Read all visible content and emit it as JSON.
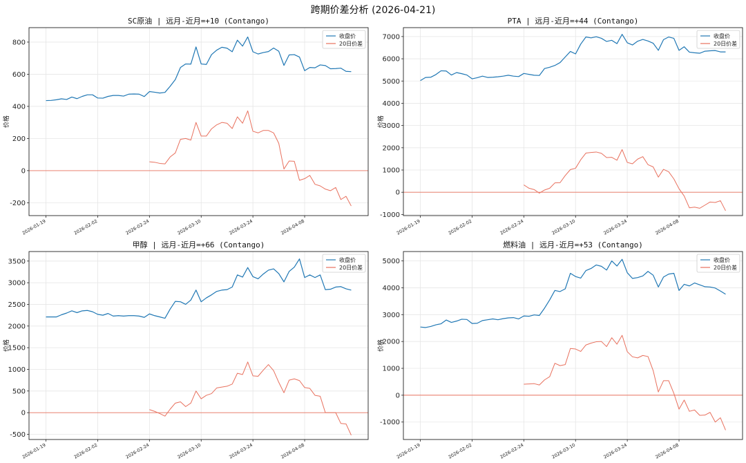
{
  "title": "跨期价差分析 (2026-04-21)",
  "colors": {
    "close": "#1f77b4",
    "spread": "#e8705d",
    "zero": "#e8705d"
  },
  "chart_data": [
    {
      "type": "line",
      "title": "SC原油 | 远月-近月=+10 (Contango)",
      "ylabel": "价格",
      "ylim": [
        -280,
        890
      ],
      "yticks": [
        -200,
        0,
        200,
        400,
        600,
        800
      ],
      "xtick_labels": [
        "2026-01-19",
        "2026-02-02",
        "2026-02-24",
        "2026-03-10",
        "2026-03-24",
        "2026-04-08"
      ],
      "xtick_positions": [
        0,
        10,
        20,
        30,
        40,
        50
      ],
      "n_points": 60,
      "legend": [
        "收盘价",
        "20日价差"
      ],
      "series": [
        {
          "name": "收盘价",
          "start": 0,
          "values": [
            436,
            437,
            441,
            447,
            443,
            458,
            448,
            462,
            472,
            472,
            452,
            451,
            462,
            468,
            468,
            464,
            476,
            477,
            476,
            461,
            492,
            488,
            483,
            487,
            525,
            567,
            642,
            664,
            663,
            770,
            664,
            661,
            722,
            750,
            768,
            762,
            740,
            812,
            775,
            832,
            740,
            726,
            735,
            741,
            763,
            743,
            655,
            720,
            722,
            707,
            622,
            642,
            640,
            658,
            654,
            634,
            635,
            638,
            618,
            616
          ]
        },
        {
          "name": "20日价差",
          "start": 20,
          "values": [
            55,
            52,
            45,
            42,
            85,
            110,
            195,
            200,
            190,
            300,
            215,
            215,
            260,
            285,
            300,
            295,
            262,
            335,
            295,
            372,
            245,
            235,
            250,
            250,
            235,
            170,
            10,
            60,
            58,
            -60,
            -50,
            -30,
            -85,
            -95,
            -115,
            -125,
            -105,
            -180,
            -160,
            -220
          ]
        }
      ]
    },
    {
      "type": "line",
      "title": "PTA | 远月-近月=+44 (Contango)",
      "ylabel": "价格",
      "ylim": [
        -1050,
        7400
      ],
      "yticks": [
        -1000,
        0,
        1000,
        2000,
        3000,
        4000,
        5000,
        6000,
        7000
      ],
      "xtick_labels": [
        "2026-01-19",
        "2026-02-02",
        "2026-02-24",
        "2026-03-10",
        "2026-03-24",
        "2026-04-08"
      ],
      "xtick_positions": [
        0,
        10,
        20,
        30,
        40,
        50
      ],
      "n_points": 60,
      "legend": [
        "收盘价",
        "20日价差"
      ],
      "series": [
        {
          "name": "收盘价",
          "start": 0,
          "values": [
            5020,
            5160,
            5170,
            5290,
            5460,
            5450,
            5270,
            5380,
            5330,
            5270,
            5100,
            5150,
            5220,
            5160,
            5170,
            5190,
            5220,
            5260,
            5220,
            5200,
            5340,
            5300,
            5260,
            5250,
            5560,
            5620,
            5700,
            5830,
            6080,
            6330,
            6220,
            6660,
            6980,
            6940,
            6990,
            6920,
            6780,
            6830,
            6680,
            7100,
            6720,
            6620,
            6790,
            6870,
            6800,
            6700,
            6380,
            6860,
            6980,
            6920,
            6380,
            6540,
            6300,
            6270,
            6250,
            6340,
            6360,
            6370,
            6310,
            6310
          ]
        },
        {
          "name": "20日价差",
          "start": 20,
          "values": [
            330,
            180,
            120,
            -40,
            100,
            180,
            420,
            430,
            750,
            1020,
            1080,
            1460,
            1760,
            1790,
            1810,
            1750,
            1560,
            1570,
            1440,
            1920,
            1340,
            1280,
            1490,
            1600,
            1240,
            1140,
            680,
            1030,
            920,
            600,
            160,
            -170,
            -700,
            -670,
            -720,
            -580,
            -440,
            -460,
            -380,
            -830
          ]
        }
      ]
    },
    {
      "type": "line",
      "title": "甲醇 | 远月-近月=+66 (Contango)",
      "ylabel": "价格",
      "ylim": [
        -620,
        3720
      ],
      "yticks": [
        -500,
        0,
        500,
        1000,
        1500,
        2000,
        2500,
        3000,
        3500
      ],
      "xtick_labels": [
        "2026-01-19",
        "2026-02-02",
        "2026-02-24",
        "2026-03-10",
        "2026-03-24",
        "2026-04-08"
      ],
      "xtick_positions": [
        0,
        10,
        20,
        30,
        40,
        50
      ],
      "n_points": 60,
      "legend": [
        "收盘价",
        "20日价差"
      ],
      "series": [
        {
          "name": "收盘价",
          "start": 0,
          "values": [
            2210,
            2210,
            2210,
            2260,
            2300,
            2350,
            2310,
            2350,
            2360,
            2330,
            2270,
            2250,
            2290,
            2230,
            2240,
            2230,
            2240,
            2240,
            2230,
            2200,
            2280,
            2240,
            2210,
            2180,
            2390,
            2570,
            2560,
            2500,
            2600,
            2830,
            2560,
            2650,
            2720,
            2800,
            2830,
            2840,
            2900,
            3180,
            3130,
            3350,
            3140,
            3090,
            3200,
            3290,
            3320,
            3210,
            3020,
            3260,
            3360,
            3550,
            3120,
            3180,
            3120,
            3180,
            2840,
            2850,
            2900,
            2910,
            2860,
            2830
          ]
        },
        {
          "name": "20日价差",
          "start": 20,
          "values": [
            70,
            30,
            -20,
            -80,
            80,
            220,
            250,
            140,
            220,
            500,
            320,
            400,
            440,
            570,
            590,
            610,
            660,
            910,
            880,
            1170,
            850,
            840,
            980,
            1110,
            970,
            700,
            460,
            750,
            780,
            740,
            580,
            560,
            400,
            380,
            0,
            0,
            0,
            -250,
            -260,
            -520
          ]
        }
      ]
    },
    {
      "type": "line",
      "title": "燃料油 | 远月-近月=+53 (Contango)",
      "ylabel": "价格",
      "ylim": [
        -1650,
        5350
      ],
      "yticks": [
        -1000,
        0,
        1000,
        2000,
        3000,
        4000,
        5000
      ],
      "xtick_labels": [
        "2026-01-19",
        "2026-02-02",
        "2026-02-24",
        "2026-03-10",
        "2026-03-24",
        "2026-04-08"
      ],
      "xtick_positions": [
        0,
        10,
        20,
        30,
        40,
        50
      ],
      "n_points": 60,
      "legend": [
        "收盘价",
        "20日价差"
      ],
      "series": [
        {
          "name": "收盘价",
          "start": 0,
          "values": [
            2540,
            2520,
            2560,
            2620,
            2660,
            2800,
            2710,
            2760,
            2830,
            2820,
            2670,
            2680,
            2780,
            2810,
            2840,
            2810,
            2850,
            2880,
            2890,
            2840,
            2950,
            2940,
            2990,
            2970,
            3240,
            3550,
            3900,
            3860,
            3960,
            4540,
            4420,
            4360,
            4640,
            4720,
            4850,
            4800,
            4660,
            5000,
            4810,
            5060,
            4560,
            4350,
            4380,
            4440,
            4610,
            4470,
            4030,
            4400,
            4510,
            4540,
            3900,
            4130,
            4070,
            4180,
            4110,
            4040,
            4030,
            3990,
            3880,
            3760
          ]
        },
        {
          "name": "20日价差",
          "start": 20,
          "values": [
            410,
            420,
            430,
            380,
            570,
            690,
            1190,
            1100,
            1140,
            1740,
            1720,
            1630,
            1870,
            1940,
            1990,
            2000,
            1810,
            2140,
            1900,
            2230,
            1620,
            1430,
            1390,
            1480,
            1440,
            920,
            120,
            540,
            540,
            70,
            -520,
            -180,
            -600,
            -550,
            -750,
            -740,
            -640,
            -1000,
            -840,
            -1300
          ]
        }
      ]
    }
  ]
}
